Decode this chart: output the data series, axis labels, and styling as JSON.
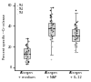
{
  "groups": [
    "Allergen\n+ medium",
    "Allergen\n+ NAP",
    "Allergen\n+ IL-12"
  ],
  "ylabel": "Percent specific ⁵¹Cr release",
  "ylim": [
    -3,
    62
  ],
  "yticks": [
    0,
    20,
    40,
    60
  ],
  "legend_labels": [
    "Th1",
    "Th2",
    "Th3"
  ],
  "legend_colors": [
    "#333333",
    "#888888",
    "#bbbbbb"
  ],
  "group1_th1": [
    3,
    5,
    8,
    10,
    12,
    14,
    15,
    17,
    18,
    20,
    22,
    25,
    6,
    9,
    11,
    13,
    16,
    19,
    21,
    23,
    28
  ],
  "group1_th2": [
    5,
    7,
    10,
    12,
    15,
    18,
    20,
    22,
    6,
    8,
    11,
    14,
    16,
    19,
    25
  ],
  "group1_th3": [
    4,
    6,
    8,
    10,
    12,
    14,
    16,
    18,
    20,
    22,
    5,
    7,
    9,
    11,
    13
  ],
  "group2_th1": [
    30,
    35,
    38,
    40,
    42,
    45,
    48,
    50,
    32,
    36,
    39,
    41,
    43,
    46,
    49,
    51,
    28,
    55,
    58
  ],
  "group2_th2": [
    25,
    30,
    33,
    36,
    38,
    40,
    43,
    46,
    48,
    27,
    31,
    34,
    37,
    39,
    41,
    44,
    52
  ],
  "group2_th3": [
    20,
    25,
    28,
    30,
    32,
    35,
    38,
    40,
    22,
    26,
    29,
    31,
    33,
    36,
    45,
    8
  ],
  "group3_th1": [
    25,
    28,
    30,
    32,
    35,
    38,
    40,
    42,
    27,
    29,
    31,
    33,
    36,
    39,
    41,
    44,
    55
  ],
  "group3_th2": [
    20,
    24,
    27,
    30,
    33,
    36,
    38,
    40,
    22,
    25,
    28,
    31,
    34,
    37,
    45
  ],
  "group3_th3": [
    15,
    18,
    22,
    25,
    28,
    30,
    32,
    34,
    17,
    20,
    23,
    26,
    29,
    31,
    40
  ],
  "fig_width": 1.0,
  "fig_height": 0.9,
  "dpi": 100
}
